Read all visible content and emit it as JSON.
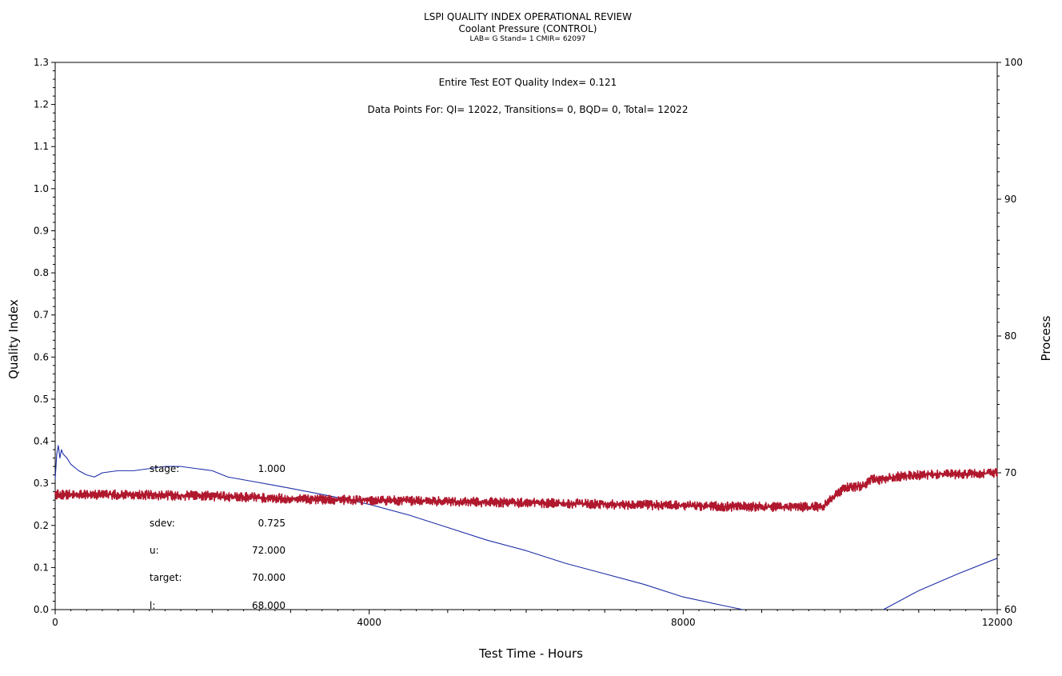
{
  "header": {
    "title": "LSPI QUALITY INDEX OPERATIONAL REVIEW",
    "subtitle": "Coolant Pressure (CONTROL)",
    "info": "LAB= G Stand= 1 CMIR= 62097"
  },
  "annotations": {
    "eot": "Entire Test EOT Quality Index=   0.121",
    "datapoints": "Data Points For: QI=  12022, Transitions=      0, BQD=      0, Total=  12022"
  },
  "stats": [
    {
      "label": "stage:",
      "value": "1.000"
    },
    {
      "label": "sdev:",
      "value": "0.725"
    },
    {
      "label": "u:",
      "value": "72.000"
    },
    {
      "label": "target:",
      "value": "70.000"
    },
    {
      "label": "l:",
      "value": "68.000"
    }
  ],
  "colors": {
    "quality_index": "#1f2fa8",
    "process": "#b0182e"
  },
  "chart_data": {
    "type": "line",
    "title": "LSPI QUALITY INDEX OPERATIONAL REVIEW",
    "xlabel": "Test Time - Hours",
    "ylabel": "Quality Index",
    "y2label": "Process",
    "xlim": [
      0,
      12000
    ],
    "ylim": [
      0,
      1.3
    ],
    "y2lim": [
      60,
      100
    ],
    "x_ticks": [
      0,
      4000,
      8000,
      12000
    ],
    "y_ticks": [
      "0.0",
      "0.1",
      "0.2",
      "0.3",
      "0.4",
      "0.5",
      "0.6",
      "0.7",
      "0.8",
      "0.9",
      "1.0",
      "1.1",
      "1.2",
      "1.3"
    ],
    "y2_ticks": [
      60,
      70,
      80,
      90,
      100
    ],
    "grid": false,
    "series": [
      {
        "axis": "left",
        "x": [
          0,
          20,
          40,
          60,
          80,
          100,
          150,
          200,
          300,
          400,
          500,
          600,
          800,
          1000,
          1200,
          1400,
          1600,
          1800,
          2000,
          2200,
          2500,
          2800,
          3000,
          3500,
          4000,
          4500,
          5000,
          5500,
          6000,
          6500,
          7000,
          7500,
          8000,
          8500,
          8760
        ],
        "values": [
          0.31,
          0.37,
          0.39,
          0.36,
          0.38,
          0.37,
          0.36,
          0.345,
          0.33,
          0.32,
          0.315,
          0.325,
          0.33,
          0.33,
          0.335,
          0.34,
          0.34,
          0.335,
          0.33,
          0.315,
          0.305,
          0.295,
          0.288,
          0.27,
          0.25,
          0.225,
          0.195,
          0.165,
          0.14,
          0.11,
          0.085,
          0.06,
          0.03,
          0.01,
          0.0
        ]
      },
      {
        "axis": "left",
        "x": [
          10550,
          11000,
          11500,
          12000
        ],
        "values": [
          0.0,
          0.045,
          0.085,
          0.122
        ]
      },
      {
        "axis": "right",
        "x": [
          0,
          1000,
          2000,
          3000,
          4000,
          5000,
          6000,
          7000,
          8000,
          9000,
          9600,
          9780,
          9850,
          9950,
          10050,
          10200,
          10300,
          10400,
          10500,
          10700,
          10900,
          11200,
          11600,
          12000
        ],
        "values": [
          68.4,
          68.4,
          68.3,
          68.1,
          68.0,
          67.9,
          67.8,
          67.7,
          67.6,
          67.5,
          67.5,
          67.5,
          68.0,
          68.4,
          68.9,
          69.0,
          69.0,
          69.6,
          69.5,
          69.7,
          69.8,
          69.9,
          69.9,
          70.0
        ]
      }
    ]
  }
}
